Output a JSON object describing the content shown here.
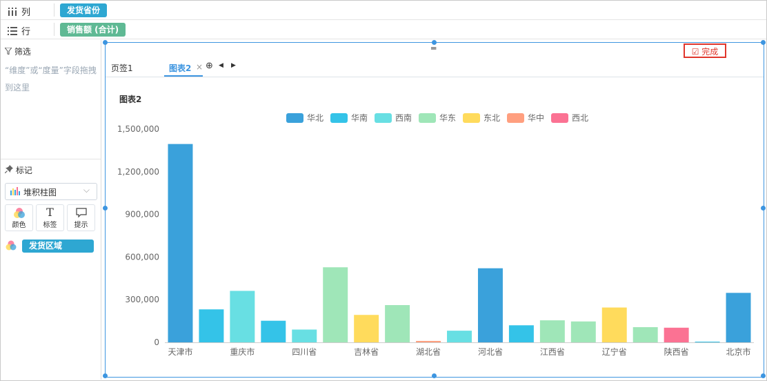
{
  "shelves": {
    "columns": {
      "label": "列",
      "icon": "columns-icon",
      "pill": "发货省份"
    },
    "rows": {
      "label": "行",
      "icon": "rows-icon",
      "pill": "销售额 (合计)"
    }
  },
  "filter": {
    "title": "筛选",
    "hint": "“维度”或“度量”字段拖拽到这里"
  },
  "marks": {
    "title": "标记",
    "chart_type": "堆积柱图",
    "buttons": [
      {
        "label": "颜色",
        "glyph": ""
      },
      {
        "label": "标签",
        "glyph": "T"
      },
      {
        "label": "提示",
        "glyph": ""
      }
    ],
    "color_field": "发货区域"
  },
  "canvas": {
    "done_label": "完成",
    "tabs": [
      {
        "label": "页签1"
      },
      {
        "label": "图表2"
      }
    ],
    "tab_close": "×",
    "tab_add": "⊕",
    "chart_title": "图表2"
  },
  "colors": {
    "华北": "#3aa1db",
    "华南": "#34c3e8",
    "西南": "#68dfe3",
    "华东": "#9fe6b8",
    "东北": "#ffdb5c",
    "华中": "#ff9f7f",
    "西北": "#fb7293",
    "accent": "#3d95e0",
    "done": "#e0352b"
  },
  "chart_data": {
    "type": "bar",
    "title": "图表2",
    "legend": {
      "placement": "top-center",
      "entries": [
        "华北",
        "华南",
        "西南",
        "华东",
        "东北",
        "华中",
        "西北"
      ]
    },
    "ylim": [
      0,
      1500000
    ],
    "yticks": [
      0,
      300000,
      600000,
      900000,
      1200000,
      1500000
    ],
    "ytick_labels": [
      "0",
      "300,000",
      "600,000",
      "900,000",
      "1,200,000",
      "1,500,000"
    ],
    "grid": false,
    "categories": [
      "天津市",
      "",
      "重庆市",
      "",
      "四川省",
      "",
      "吉林省",
      "",
      "湖北省",
      "",
      "河北省",
      "",
      "江西省",
      "",
      "辽宁省",
      "",
      "陕西省",
      "",
      "北京市"
    ],
    "bars": [
      {
        "region": "华北",
        "value": 1395000
      },
      {
        "region": "华南",
        "value": 232000
      },
      {
        "region": "西南",
        "value": 362000
      },
      {
        "region": "华南",
        "value": 152000
      },
      {
        "region": "西南",
        "value": 90000
      },
      {
        "region": "华东",
        "value": 528000
      },
      {
        "region": "东北",
        "value": 193000
      },
      {
        "region": "华东",
        "value": 262000
      },
      {
        "region": "华中",
        "value": 10000
      },
      {
        "region": "西南",
        "value": 82000
      },
      {
        "region": "华北",
        "value": 521000
      },
      {
        "region": "华南",
        "value": 120000
      },
      {
        "region": "华东",
        "value": 155000
      },
      {
        "region": "华东",
        "value": 147000
      },
      {
        "region": "东北",
        "value": 245000
      },
      {
        "region": "华东",
        "value": 107000
      },
      {
        "region": "西北",
        "value": 103000
      },
      {
        "region": "华南",
        "value": 5000
      },
      {
        "region": "华北",
        "value": 348000
      }
    ]
  }
}
